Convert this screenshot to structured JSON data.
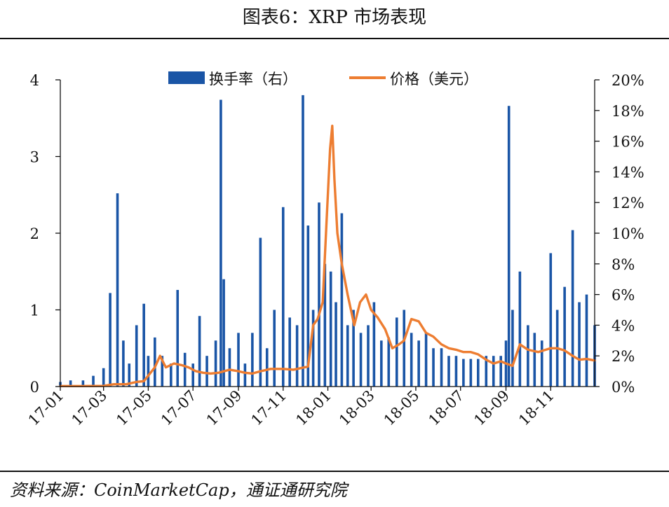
{
  "header": {
    "title": "图表6：XRP 市场表现"
  },
  "footer": {
    "source": "资料来源：CoinMarketCap，通证通研究院"
  },
  "colors": {
    "turnover": "#1a55a6",
    "price": "#ed7d31",
    "axis": "#111111",
    "rule": "#111111"
  },
  "chart_data": {
    "type": "bar",
    "x_ticks": [
      "17-01",
      "17-03",
      "17-05",
      "17-07",
      "17-09",
      "17-11",
      "18-01",
      "18-03",
      "18-05",
      "18-07",
      "18-09",
      "18-11"
    ],
    "left_axis": {
      "ylim": [
        0,
        4
      ],
      "ticks": [
        "0",
        "1",
        "2",
        "3",
        "4"
      ],
      "series": "价格（美元）"
    },
    "right_axis": {
      "ylim": [
        0,
        20
      ],
      "ticks": [
        "0%",
        "2%",
        "4%",
        "6%",
        "8%",
        "10%",
        "12%",
        "14%",
        "16%",
        "18%",
        "20%"
      ],
      "series": "换手率（右）"
    },
    "legend": {
      "position": "top",
      "entries": [
        "换手率（右）",
        "价格（美元）"
      ]
    },
    "series": [
      {
        "name": "换手率（右）",
        "type": "bar",
        "axis": "right",
        "unit": "%",
        "x": [
          "2017-01-01",
          "2017-01-15",
          "2017-02-01",
          "2017-02-15",
          "2017-03-01",
          "2017-03-10",
          "2017-03-20",
          "2017-03-28",
          "2017-04-05",
          "2017-04-15",
          "2017-04-25",
          "2017-05-01",
          "2017-05-10",
          "2017-05-20",
          "2017-06-01",
          "2017-06-10",
          "2017-06-20",
          "2017-07-01",
          "2017-07-10",
          "2017-07-20",
          "2017-08-01",
          "2017-08-08",
          "2017-08-12",
          "2017-08-20",
          "2017-09-01",
          "2017-09-10",
          "2017-09-20",
          "2017-10-01",
          "2017-10-10",
          "2017-10-20",
          "2017-11-01",
          "2017-11-10",
          "2017-11-20",
          "2017-11-28",
          "2017-12-05",
          "2017-12-12",
          "2017-12-20",
          "2017-12-28",
          "2018-01-05",
          "2018-01-12",
          "2018-01-20",
          "2018-01-28",
          "2018-02-05",
          "2018-02-15",
          "2018-02-25",
          "2018-03-05",
          "2018-03-15",
          "2018-03-25",
          "2018-04-05",
          "2018-04-15",
          "2018-04-25",
          "2018-05-05",
          "2018-05-15",
          "2018-05-25",
          "2018-06-05",
          "2018-06-15",
          "2018-06-25",
          "2018-07-05",
          "2018-07-15",
          "2018-07-25",
          "2018-08-05",
          "2018-08-15",
          "2018-08-25",
          "2018-09-01",
          "2018-09-05",
          "2018-09-10",
          "2018-09-20",
          "2018-10-01",
          "2018-10-10",
          "2018-10-20",
          "2018-11-01",
          "2018-11-10",
          "2018-11-20",
          "2018-12-01",
          "2018-12-10",
          "2018-12-20",
          "2018-12-31"
        ],
        "values": [
          0.3,
          0.4,
          0.4,
          0.7,
          1.2,
          6.1,
          12.6,
          3.0,
          1.5,
          4.0,
          5.4,
          2.0,
          3.2,
          2.0,
          1.5,
          6.3,
          2.2,
          1.5,
          4.6,
          2.0,
          3.0,
          18.7,
          7.0,
          2.5,
          3.5,
          1.5,
          3.5,
          9.7,
          2.5,
          5.0,
          11.7,
          4.5,
          4.0,
          19.0,
          10.5,
          5.0,
          12.0,
          8.0,
          7.5,
          5.5,
          11.3,
          4.0,
          5.0,
          3.5,
          4.0,
          5.5,
          3.0,
          3.2,
          4.5,
          5.0,
          3.5,
          3.0,
          3.5,
          2.5,
          2.5,
          2.0,
          2.0,
          1.8,
          1.8,
          1.8,
          2.0,
          2.0,
          2.0,
          3.0,
          18.3,
          5.0,
          7.5,
          4.0,
          3.5,
          3.0,
          8.7,
          5.0,
          6.5,
          10.2,
          5.5,
          6.0,
          4.0
        ]
      },
      {
        "name": "价格（美元）",
        "type": "line",
        "axis": "left",
        "unit": "USD",
        "x": [
          "2017-01-01",
          "2017-02-01",
          "2017-03-01",
          "2017-03-15",
          "2017-04-01",
          "2017-04-15",
          "2017-04-25",
          "2017-05-10",
          "2017-05-17",
          "2017-05-25",
          "2017-06-05",
          "2017-06-15",
          "2017-06-25",
          "2017-07-05",
          "2017-07-15",
          "2017-07-25",
          "2017-08-05",
          "2017-08-20",
          "2017-09-01",
          "2017-09-10",
          "2017-09-20",
          "2017-10-01",
          "2017-10-15",
          "2017-11-01",
          "2017-11-15",
          "2017-11-25",
          "2017-12-05",
          "2017-12-12",
          "2017-12-18",
          "2017-12-25",
          "2017-12-30",
          "2018-01-04",
          "2018-01-07",
          "2018-01-10",
          "2018-01-14",
          "2018-01-20",
          "2018-01-28",
          "2018-02-06",
          "2018-02-14",
          "2018-02-22",
          "2018-03-01",
          "2018-03-10",
          "2018-03-20",
          "2018-03-30",
          "2018-04-08",
          "2018-04-15",
          "2018-04-25",
          "2018-05-05",
          "2018-05-15",
          "2018-05-25",
          "2018-06-05",
          "2018-06-15",
          "2018-06-25",
          "2018-07-05",
          "2018-07-15",
          "2018-07-25",
          "2018-08-05",
          "2018-08-15",
          "2018-08-25",
          "2018-09-01",
          "2018-09-10",
          "2018-09-20",
          "2018-10-01",
          "2018-10-15",
          "2018-11-01",
          "2018-11-10",
          "2018-11-20",
          "2018-12-01",
          "2018-12-10",
          "2018-12-20",
          "2018-12-31"
        ],
        "values": [
          0.006,
          0.006,
          0.008,
          0.03,
          0.03,
          0.06,
          0.07,
          0.25,
          0.4,
          0.25,
          0.3,
          0.28,
          0.25,
          0.2,
          0.18,
          0.17,
          0.18,
          0.22,
          0.2,
          0.18,
          0.17,
          0.2,
          0.23,
          0.23,
          0.22,
          0.24,
          0.26,
          0.8,
          0.88,
          1.1,
          2.1,
          3.1,
          3.4,
          2.7,
          2.0,
          1.6,
          1.2,
          0.8,
          1.1,
          1.2,
          1.0,
          0.9,
          0.75,
          0.5,
          0.55,
          0.6,
          0.88,
          0.85,
          0.7,
          0.65,
          0.55,
          0.5,
          0.48,
          0.45,
          0.45,
          0.42,
          0.35,
          0.3,
          0.33,
          0.3,
          0.27,
          0.55,
          0.48,
          0.45,
          0.5,
          0.5,
          0.47,
          0.4,
          0.35,
          0.36,
          0.34
        ]
      }
    ]
  }
}
